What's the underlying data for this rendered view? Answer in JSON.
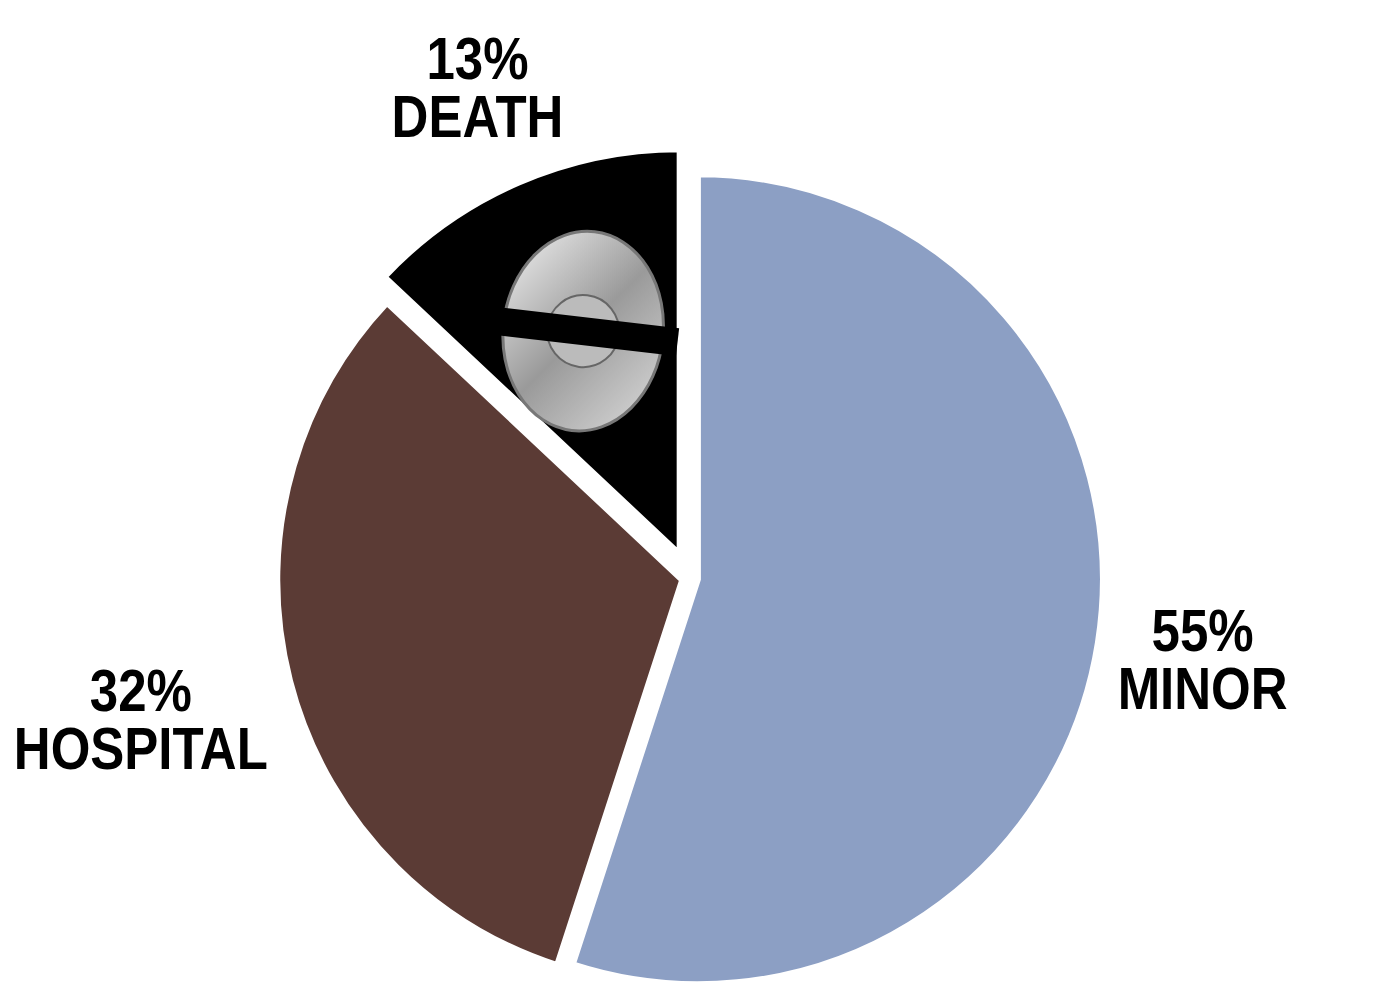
{
  "chart_data": {
    "type": "pie",
    "categories": [
      "MINOR",
      "HOSPITAL",
      "DEATH"
    ],
    "values": [
      55,
      32,
      13
    ],
    "value_labels": [
      "55%",
      "32%",
      "13%"
    ],
    "colors": [
      "#8c9fc4",
      "#5b3b35",
      "#000000"
    ],
    "data_labels": true
  }
}
